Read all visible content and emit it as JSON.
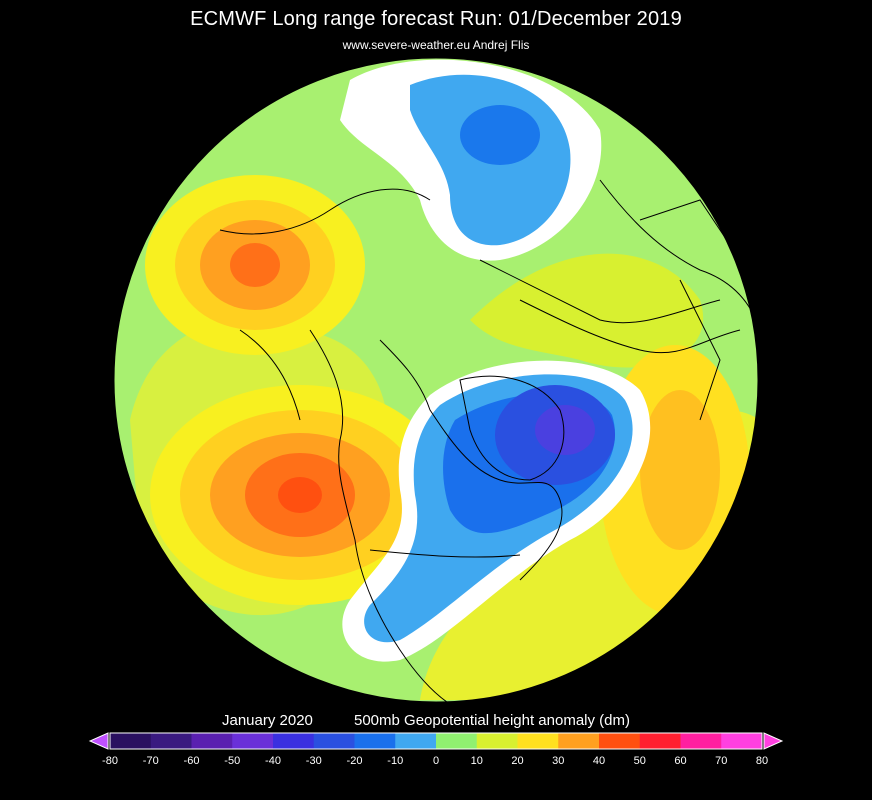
{
  "header": {
    "title": "ECMWF Long range forecast  Run: 01/December 2019",
    "subtitle": "www.severe-weather.eu   Andrej Flis"
  },
  "legend": {
    "period": "January 2020",
    "variable": "500mb Geopotential height anomaly (dm)",
    "ticks": [
      "-80",
      "-70",
      "-60",
      "-50",
      "-40",
      "-30",
      "-20",
      "-10",
      "0",
      "10",
      "20",
      "30",
      "40",
      "50",
      "60",
      "70",
      "80"
    ],
    "colors": {
      "-80": "#2a1060",
      "-70": "#3a1a80",
      "-60": "#5a20b0",
      "-50": "#6a30d8",
      "-40": "#3a30e0",
      "-30": "#2a50e0",
      "-20": "#1a70ec",
      "-10": "#40a8f0",
      "0": "#ffffff",
      "10": "#90f070",
      "20": "#d8f030",
      "30": "#ffe020",
      "40": "#ffa020",
      "50": "#ff5010",
      "60": "#ff2030",
      "70": "#ff20a0",
      "80": "#ff40e0"
    }
  },
  "map": {
    "projection": "polar stereographic, North Pole centered",
    "background_color": "#000000",
    "disc_base_color": "#a8f070",
    "features": [
      {
        "name": "blue-anomaly-north-america-greenland",
        "value_dm": -40
      },
      {
        "name": "blue-anomaly-siberia",
        "value_dm": -20
      },
      {
        "name": "orange-anomaly-northeast-pacific",
        "value_dm": 40
      },
      {
        "name": "orange-anomaly-bering-sea",
        "value_dm": 30
      },
      {
        "name": "yellow-anomaly-north-atlantic",
        "value_dm": 20
      },
      {
        "name": "yellow-anomaly-europe",
        "value_dm": 20
      }
    ]
  }
}
